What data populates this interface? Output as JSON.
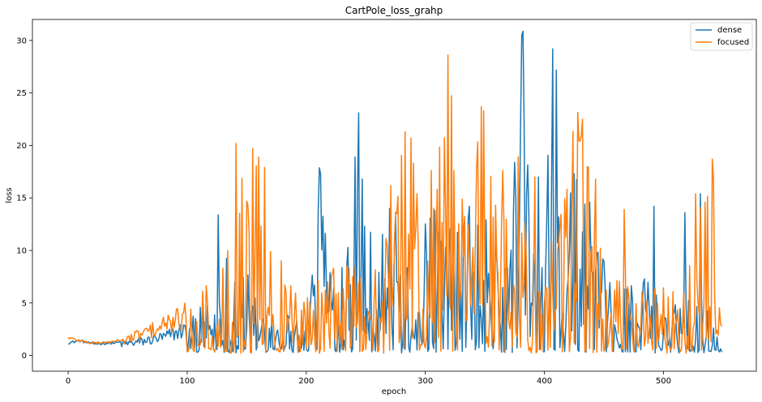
{
  "chart_data": {
    "type": "line",
    "title": "CartPole_loss_grahp",
    "xlabel": "epoch",
    "ylabel": "loss",
    "xlim": [
      -30,
      578
    ],
    "ylim": [
      -1.5,
      32
    ],
    "xticks": [
      0,
      100,
      200,
      300,
      400,
      500
    ],
    "yticks": [
      0,
      5,
      10,
      15,
      20,
      25,
      30
    ],
    "grid": false,
    "legend": "top-right",
    "n_points": 550,
    "series": [
      {
        "name": "dense",
        "color": "#1f77b4",
        "keypoints": [
          [
            0,
            1.2
          ],
          [
            10,
            1.4
          ],
          [
            20,
            1.1
          ],
          [
            40,
            1.2
          ],
          [
            60,
            1.5
          ],
          [
            80,
            2.0
          ],
          [
            100,
            3.0
          ],
          [
            110,
            4.2
          ],
          [
            120,
            6.5
          ],
          [
            126,
            13.4
          ],
          [
            135,
            8.0
          ],
          [
            145,
            11.0
          ],
          [
            155,
            5.0
          ],
          [
            170,
            4.5
          ],
          [
            190,
            3.5
          ],
          [
            200,
            3.0
          ],
          [
            212,
            17.3
          ],
          [
            225,
            5.0
          ],
          [
            235,
            15.2
          ],
          [
            244,
            23.1
          ],
          [
            255,
            10.0
          ],
          [
            270,
            13.0
          ],
          [
            290,
            9.0
          ],
          [
            310,
            14.0
          ],
          [
            330,
            11.0
          ],
          [
            345,
            14.0
          ],
          [
            360,
            10.0
          ],
          [
            372,
            12.0
          ],
          [
            381,
            30.5
          ],
          [
            390,
            11.0
          ],
          [
            400,
            8.0
          ],
          [
            407,
            29.2
          ],
          [
            420,
            12.0
          ],
          [
            425,
            17.3
          ],
          [
            440,
            10.0
          ],
          [
            460,
            6.0
          ],
          [
            480,
            7.0
          ],
          [
            500,
            5.0
          ],
          [
            520,
            6.0
          ],
          [
            535,
            5.0
          ],
          [
            549,
            0.6
          ]
        ],
        "spikes": [
          [
            126,
            13.4
          ],
          [
            212,
            17.3
          ],
          [
            241,
            18.9
          ],
          [
            244,
            23.1
          ],
          [
            270,
            14.0
          ],
          [
            308,
            13.8
          ],
          [
            337,
            14.2
          ],
          [
            376,
            15.0
          ],
          [
            380,
            22.0
          ],
          [
            381,
            30.5
          ],
          [
            395,
            17.0
          ],
          [
            407,
            29.2
          ],
          [
            425,
            17.3
          ],
          [
            438,
            14.6
          ],
          [
            492,
            14.2
          ],
          [
            518,
            13.6
          ],
          [
            531,
            15.4
          ]
        ]
      },
      {
        "name": "focused",
        "color": "#ff7f0e",
        "keypoints": [
          [
            0,
            1.7
          ],
          [
            10,
            1.4
          ],
          [
            20,
            1.2
          ],
          [
            40,
            1.3
          ],
          [
            50,
            1.8
          ],
          [
            70,
            2.8
          ],
          [
            90,
            3.8
          ],
          [
            100,
            4.5
          ],
          [
            110,
            5.0
          ],
          [
            120,
            8.0
          ],
          [
            130,
            11.0
          ],
          [
            141,
            20.2
          ],
          [
            150,
            12.0
          ],
          [
            155,
            19.7
          ],
          [
            165,
            12.0
          ],
          [
            170,
            9.0
          ],
          [
            190,
            7.5
          ],
          [
            200,
            4.5
          ],
          [
            210,
            10.0
          ],
          [
            225,
            7.0
          ],
          [
            240,
            8.0
          ],
          [
            260,
            9.0
          ],
          [
            283,
            21.3
          ],
          [
            300,
            10.0
          ],
          [
            319,
            28.6
          ],
          [
            335,
            12.0
          ],
          [
            347,
            23.7
          ],
          [
            360,
            12.0
          ],
          [
            380,
            14.0
          ],
          [
            400,
            9.0
          ],
          [
            432,
            22.5
          ],
          [
            445,
            10.0
          ],
          [
            460,
            7.0
          ],
          [
            480,
            7.5
          ],
          [
            500,
            6.0
          ],
          [
            520,
            6.5
          ],
          [
            541,
            18.7
          ],
          [
            549,
            5.0
          ]
        ],
        "spikes": [
          [
            141,
            20.2
          ],
          [
            150,
            14.7
          ],
          [
            155,
            19.7
          ],
          [
            160,
            18.9
          ],
          [
            165,
            17.9
          ],
          [
            283,
            21.3
          ],
          [
            288,
            20.7
          ],
          [
            305,
            17.6
          ],
          [
            319,
            28.6
          ],
          [
            324,
            17.6
          ],
          [
            347,
            23.7
          ],
          [
            349,
            23.3
          ],
          [
            365,
            17.6
          ],
          [
            378,
            18.9
          ],
          [
            392,
            17.0
          ],
          [
            430,
            20.4
          ],
          [
            432,
            22.5
          ],
          [
            443,
            16.8
          ],
          [
            467,
            13.9
          ],
          [
            527,
            15.4
          ],
          [
            541,
            18.7
          ]
        ]
      }
    ]
  }
}
